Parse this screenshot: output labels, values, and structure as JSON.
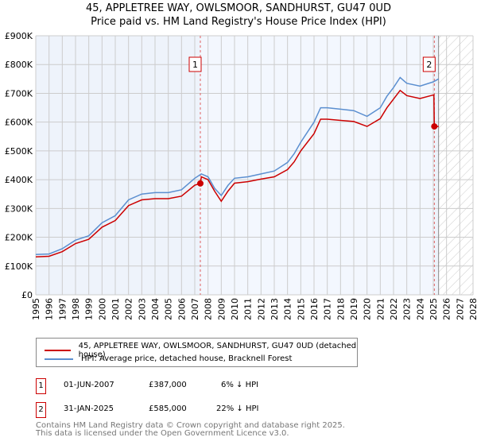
{
  "title": [
    "45, APPLETREE WAY, OWLSMOOR, SANDHURST, GU47 0UD",
    "Price paid vs. HM Land Registry's House Price Index (HPI)"
  ],
  "chart_data": {
    "type": "line",
    "xlim": [
      1995,
      2028
    ],
    "ylim": [
      0,
      900000
    ],
    "yticks": [
      {
        "v": 0,
        "l": "£0"
      },
      {
        "v": 100000,
        "l": "£100K"
      },
      {
        "v": 200000,
        "l": "£200K"
      },
      {
        "v": 300000,
        "l": "£300K"
      },
      {
        "v": 400000,
        "l": "£400K"
      },
      {
        "v": 500000,
        "l": "£500K"
      },
      {
        "v": 600000,
        "l": "£600K"
      },
      {
        "v": 700000,
        "l": "£700K"
      },
      {
        "v": 800000,
        "l": "£800K"
      },
      {
        "v": 900000,
        "l": "£900K"
      }
    ],
    "xticks": [
      "1995",
      "1996",
      "1997",
      "1998",
      "1999",
      "2000",
      "2001",
      "2002",
      "2003",
      "2004",
      "2005",
      "2006",
      "2007",
      "2008",
      "2009",
      "2010",
      "2011",
      "2012",
      "2013",
      "2014",
      "2015",
      "2016",
      "2017",
      "2018",
      "2019",
      "2020",
      "2021",
      "2022",
      "2023",
      "2024",
      "2025",
      "2026",
      "2027",
      "2028"
    ],
    "forecast_start": 2025.4,
    "series": [
      {
        "name": "HPI: Average price, detached house, Bracknell Forest",
        "color": "#5b8fd0",
        "x": [
          1995,
          1996,
          1997,
          1998,
          1999,
          2000,
          2001,
          2002,
          2003,
          2004,
          2005,
          2006,
          2007,
          2007.5,
          2008,
          2008.5,
          2009,
          2009.5,
          2010,
          2011,
          2012,
          2013,
          2014,
          2014.5,
          2015,
          2016,
          2016.5,
          2017,
          2018,
          2019,
          2020,
          2021,
          2021.5,
          2022,
          2022.5,
          2023,
          2024,
          2025,
          2025.4
        ],
        "y": [
          140000,
          142000,
          160000,
          190000,
          205000,
          250000,
          275000,
          330000,
          350000,
          355000,
          355000,
          365000,
          405000,
          420000,
          410000,
          370000,
          345000,
          380000,
          405000,
          410000,
          420000,
          430000,
          460000,
          490000,
          530000,
          600000,
          650000,
          650000,
          645000,
          640000,
          620000,
          650000,
          690000,
          720000,
          755000,
          735000,
          725000,
          740000,
          750000
        ]
      },
      {
        "name": "45, APPLETREE WAY, OWLSMOOR, SANDHURST, GU47 0UD (detached house)",
        "color": "#cc0000",
        "x": [
          1995,
          1996,
          1997,
          1998,
          1999,
          2000,
          2001,
          2002,
          2003,
          2004,
          2005,
          2006,
          2007,
          2007.42,
          2007.5,
          2008,
          2008.5,
          2009,
          2009.5,
          2010,
          2011,
          2012,
          2013,
          2014,
          2014.5,
          2015,
          2016,
          2016.5,
          2017,
          2018,
          2019,
          2020,
          2021,
          2021.5,
          2022,
          2022.5,
          2023,
          2024,
          2025.05,
          2025.08,
          2025.4
        ],
        "y": [
          132000,
          134000,
          150000,
          178000,
          193000,
          235000,
          258000,
          310000,
          330000,
          334000,
          334000,
          343000,
          381000,
          387000,
          410000,
          400000,
          360000,
          325000,
          360000,
          388000,
          393000,
          402000,
          410000,
          435000,
          462000,
          500000,
          560000,
          610000,
          610000,
          606000,
          602000,
          585000,
          612000,
          650000,
          680000,
          710000,
          692000,
          682000,
          695000,
          585000,
          585000
        ]
      }
    ],
    "sales": [
      {
        "n": "1",
        "x": 2007.42,
        "y": 387000
      },
      {
        "n": "2",
        "x": 2025.08,
        "y": 585000
      }
    ]
  },
  "legend": {
    "red": "45, APPLETREE WAY, OWLSMOOR, SANDHURST, GU47 0UD (detached house)",
    "blue": "HPI: Average price, detached house, Bracknell Forest"
  },
  "table": [
    {
      "n": "1",
      "date": "01-JUN-2007",
      "price": "£387,000",
      "hpi": "6% ↓ HPI"
    },
    {
      "n": "2",
      "date": "31-JAN-2025",
      "price": "£585,000",
      "hpi": "22% ↓ HPI"
    }
  ],
  "footer": [
    "Contains HM Land Registry data © Crown copyright and database right 2025.",
    "This data is licensed under the Open Government Licence v3.0."
  ]
}
